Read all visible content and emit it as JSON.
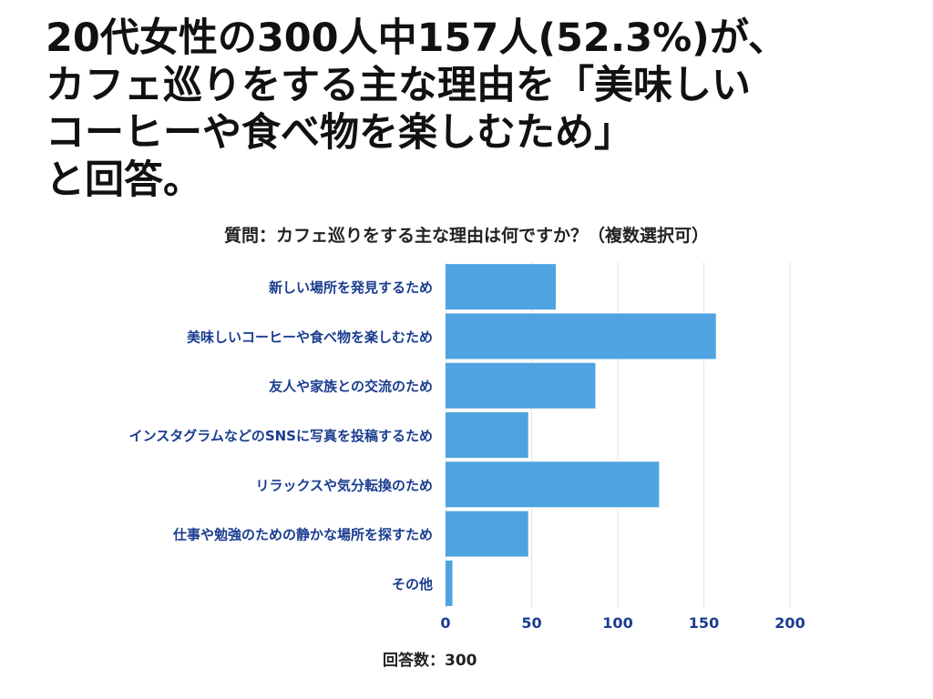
{
  "headline": {
    "lines": [
      "20代女性の300人中157人(52.3%)が、",
      "カフェ巡りをする主な理由を「美味しい",
      "コーヒーや食べ物を楽しむため」",
      "と回答。"
    ]
  },
  "footnote": {
    "label": "回答数：",
    "value": "300"
  },
  "colors": {
    "bar": "#4fa3e0",
    "label": "#1a3d8f",
    "grid": "#e6e6e6"
  },
  "chart_data": {
    "type": "bar",
    "orientation": "horizontal",
    "title": "質問：カフェ巡りをする主な理由は何ですか？（複数選択可）",
    "categories": [
      "新しい場所を発見するため",
      "美味しいコーヒーや食べ物を楽しむため",
      "友人や家族との交流のため",
      "インスタグラムなどのSNSに写真を投稿するため",
      "リラックスや気分転換のため",
      "仕事や勉強のための静かな場所を探すため",
      "その他"
    ],
    "values": [
      64,
      157,
      87,
      48,
      124,
      48,
      4
    ],
    "xlim": [
      0,
      200
    ],
    "xticks": [
      0,
      50,
      100,
      150,
      200
    ],
    "xlabel": "",
    "ylabel": "",
    "grid": true
  }
}
